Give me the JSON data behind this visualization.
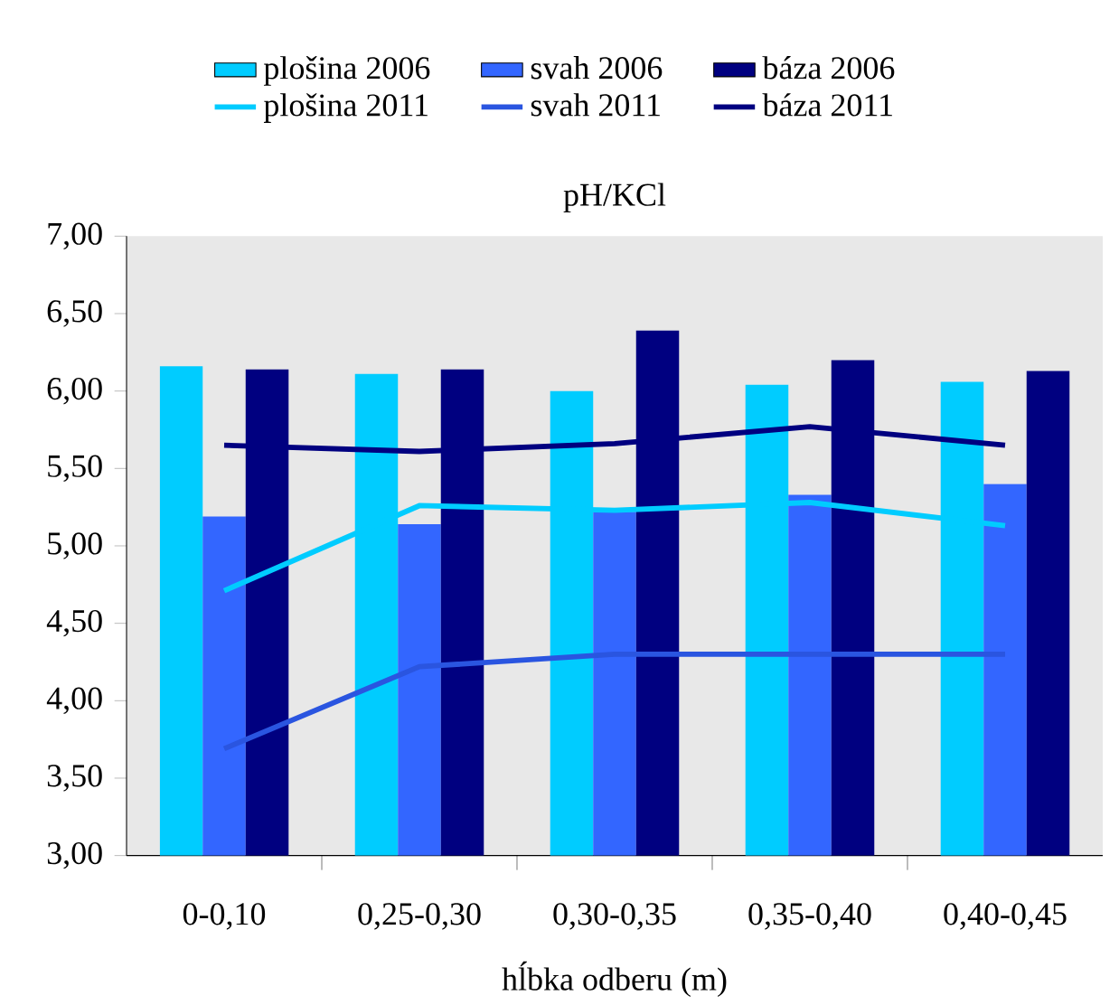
{
  "chart_data": {
    "type": "bar",
    "ylabel": "pH/KCl",
    "xlabel": "hĺbka odberu (m)",
    "categories": [
      "0-0,10",
      "0,25-0,30",
      "0,30-0,35",
      "0,35-0,40",
      "0,40-0,45"
    ],
    "series": [
      {
        "name": "plošina 2006",
        "color": "#00ccff",
        "values": [
          6.16,
          6.11,
          6.0,
          6.04,
          6.06
        ]
      },
      {
        "name": "svah 2006",
        "color": "#3366ff",
        "values": [
          5.19,
          5.14,
          5.22,
          5.33,
          5.4
        ]
      },
      {
        "name": "báza 2006",
        "color": "#000080",
        "values": [
          6.14,
          6.14,
          6.39,
          6.2,
          6.13
        ]
      },
      {
        "name": "plošina 2011",
        "type": "line",
        "color": "#00ccff",
        "values": [
          4.71,
          5.26,
          5.23,
          5.28,
          5.13
        ]
      },
      {
        "name": "svah 2011",
        "type": "line",
        "color": "#2a55e0",
        "values": [
          3.69,
          4.22,
          4.3,
          4.3,
          4.3
        ]
      },
      {
        "name": "báza 2011",
        "type": "line",
        "color": "#000080",
        "values": [
          5.65,
          5.61,
          5.66,
          5.77,
          5.65
        ]
      }
    ],
    "ylim": [
      3,
      7
    ],
    "yticks": [
      {
        "value": 3,
        "label": "3,00"
      },
      {
        "value": 3.5,
        "label": "3,50"
      },
      {
        "value": 4,
        "label": "4,00"
      },
      {
        "value": 4.5,
        "label": "4,50"
      },
      {
        "value": 5,
        "label": "5,00"
      },
      {
        "value": 5.5,
        "label": "5,50"
      },
      {
        "value": 6,
        "label": "6,00"
      },
      {
        "value": 6.5,
        "label": "6,50"
      },
      {
        "value": 7,
        "label": "7,00"
      }
    ],
    "legend": "top",
    "grid": false,
    "marker": "none",
    "line_style": "solid"
  }
}
